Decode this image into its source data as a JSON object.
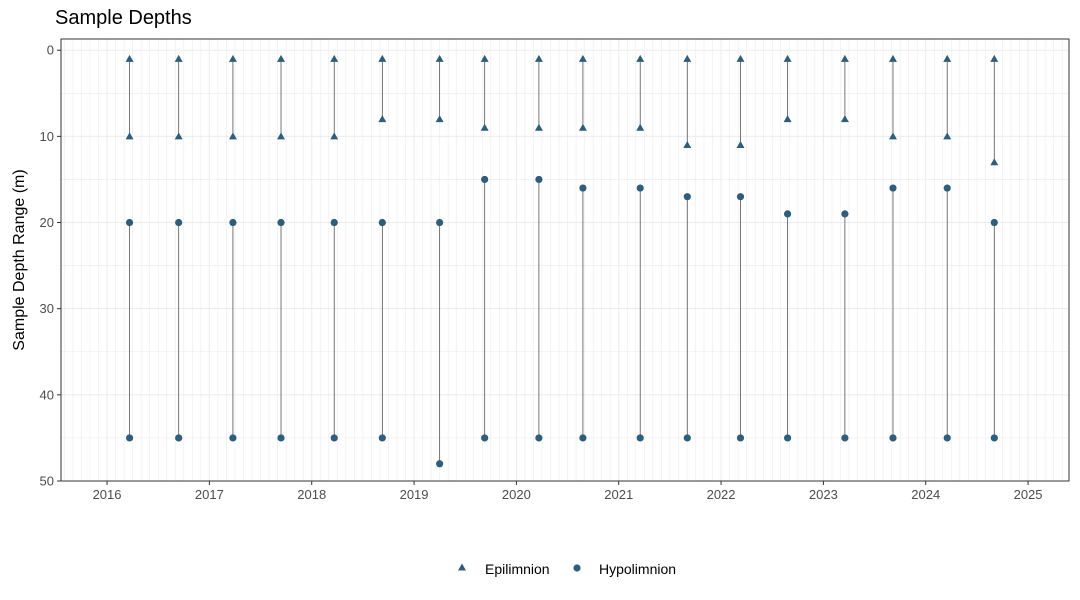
{
  "chart_data": {
    "type": "scatter",
    "title": "Sample Depths",
    "xlabel": "",
    "ylabel": "Sample Depth Range (m)",
    "x_ticks": [
      "2016",
      "2017",
      "2018",
      "2019",
      "2020",
      "2021",
      "2022",
      "2023",
      "2024",
      "2025"
    ],
    "y_ticks": [
      "0",
      "10",
      "20",
      "30",
      "40",
      "50"
    ],
    "xlim": [
      2015.55,
      2025.4
    ],
    "ylim": [
      50,
      -1.3
    ],
    "y_reversed": true,
    "grid": true,
    "legend_position": "bottom",
    "legend": [
      {
        "name": "Epilimnion",
        "shape": "triangle"
      },
      {
        "name": "Hypolimnion",
        "shape": "circle"
      }
    ],
    "colors": {
      "points": "#2f5d7c",
      "range_line": "#555555",
      "grid": "#ebebeb",
      "panel_border": "#333333"
    },
    "x": [
      2016.22,
      2016.7,
      2017.23,
      2017.7,
      2018.22,
      2018.69,
      2019.25,
      2019.69,
      2020.22,
      2020.65,
      2021.21,
      2021.67,
      2022.19,
      2022.65,
      2023.21,
      2023.68,
      2024.21,
      2024.67
    ],
    "series": [
      {
        "name": "Epilimnion",
        "shape": "triangle",
        "top": [
          1,
          1,
          1,
          1,
          1,
          1,
          1,
          1,
          1,
          1,
          1,
          1,
          1,
          1,
          1,
          1,
          1,
          1
        ],
        "bottom": [
          10,
          10,
          10,
          10,
          10,
          8,
          8,
          9,
          9,
          9,
          9,
          11,
          11,
          8,
          8,
          10,
          10,
          13
        ]
      },
      {
        "name": "Hypolimnion",
        "shape": "circle",
        "top": [
          20,
          20,
          20,
          20,
          20,
          20,
          20,
          15,
          15,
          16,
          16,
          17,
          17,
          19,
          19,
          16,
          16,
          20
        ],
        "bottom": [
          45,
          45,
          45,
          45,
          45,
          45,
          48,
          45,
          45,
          45,
          45,
          45,
          45,
          45,
          45,
          45,
          45,
          45
        ]
      }
    ]
  }
}
